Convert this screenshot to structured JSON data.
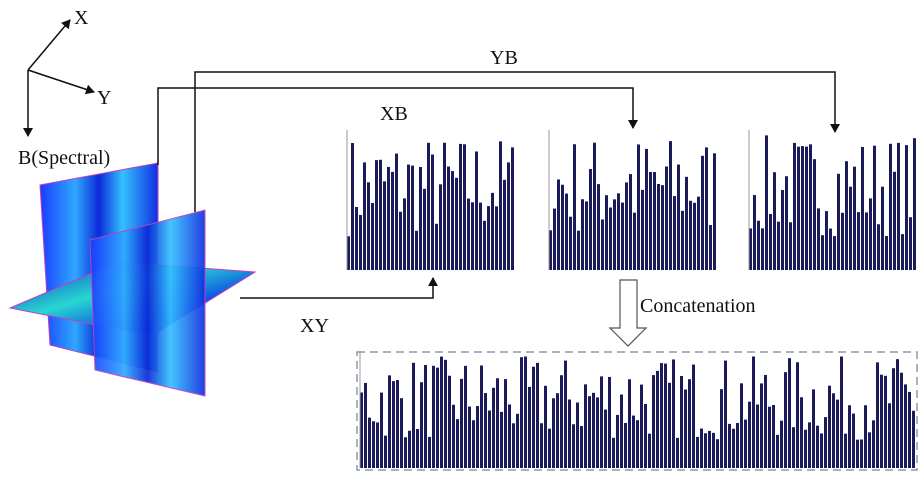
{
  "axes": {
    "x": "X",
    "y": "Y",
    "b": "B(Spectral)"
  },
  "labels": {
    "yb": "YB",
    "xb": "XB",
    "xy": "XY",
    "concatenation": "Concatenation"
  }
}
